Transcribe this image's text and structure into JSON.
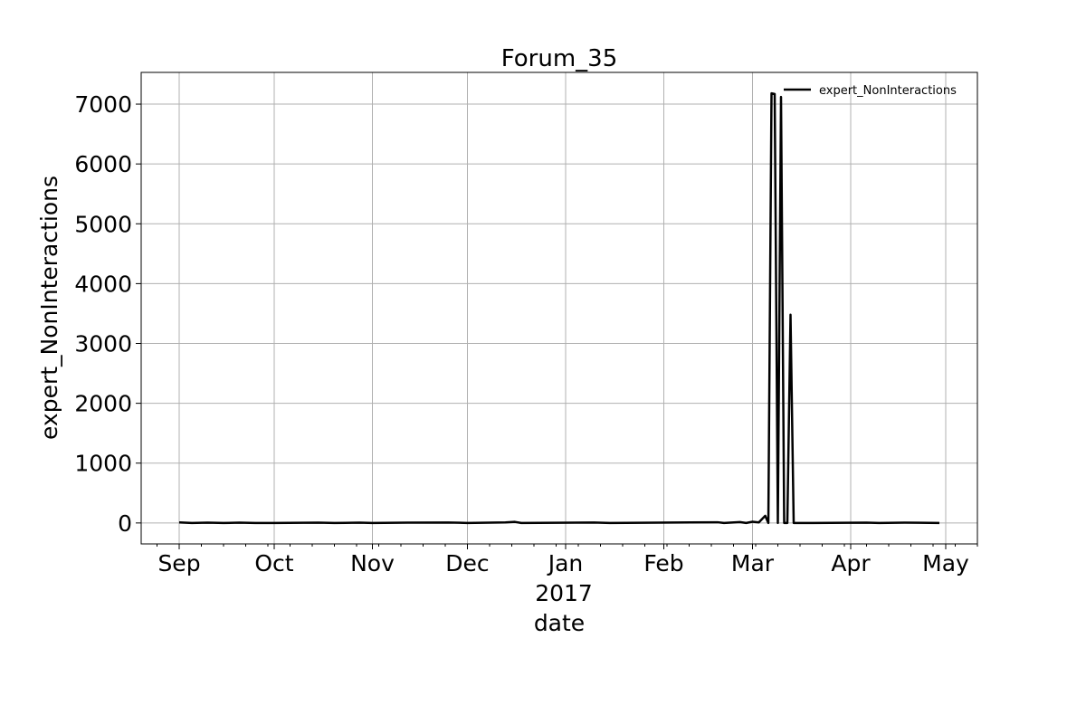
{
  "chart_data": {
    "type": "line",
    "title": "Forum_35",
    "xlabel": "date",
    "ylabel": "expert_NonInteractions",
    "year_label": "2017",
    "x_ticks": [
      {
        "date": "2016-09-01",
        "label": "Sep"
      },
      {
        "date": "2016-10-01",
        "label": "Oct"
      },
      {
        "date": "2016-11-01",
        "label": "Nov"
      },
      {
        "date": "2016-12-01",
        "label": "Dec"
      },
      {
        "date": "2017-01-01",
        "label": "Jan"
      },
      {
        "date": "2017-02-01",
        "label": "Feb"
      },
      {
        "date": "2017-03-01",
        "label": "Mar"
      },
      {
        "date": "2017-04-01",
        "label": "Apr"
      },
      {
        "date": "2017-05-01",
        "label": "May"
      }
    ],
    "xlim": [
      "2016-08-20",
      "2017-05-11"
    ],
    "y_ticks": [
      0,
      1000,
      2000,
      3000,
      4000,
      5000,
      6000,
      7000
    ],
    "ylim": [
      -350,
      7530
    ],
    "grid": true,
    "legend_position": "top-right",
    "series": [
      {
        "name": "expert_NonInteractions",
        "color": "#000000",
        "points": [
          [
            "2016-09-01",
            10
          ],
          [
            "2016-09-05",
            0
          ],
          [
            "2016-09-10",
            5
          ],
          [
            "2016-09-15",
            0
          ],
          [
            "2016-09-20",
            5
          ],
          [
            "2016-09-25",
            0
          ],
          [
            "2016-10-01",
            0
          ],
          [
            "2016-10-15",
            5
          ],
          [
            "2016-10-20",
            0
          ],
          [
            "2016-10-28",
            5
          ],
          [
            "2016-11-01",
            0
          ],
          [
            "2016-11-12",
            5
          ],
          [
            "2016-11-25",
            8
          ],
          [
            "2016-12-01",
            0
          ],
          [
            "2016-12-13",
            10
          ],
          [
            "2016-12-16",
            18
          ],
          [
            "2016-12-18",
            0
          ],
          [
            "2017-01-10",
            8
          ],
          [
            "2017-01-15",
            0
          ],
          [
            "2017-02-18",
            12
          ],
          [
            "2017-02-20",
            0
          ],
          [
            "2017-02-25",
            15
          ],
          [
            "2017-02-27",
            0
          ],
          [
            "2017-03-01",
            20
          ],
          [
            "2017-03-03",
            10
          ],
          [
            "2017-03-05",
            120
          ],
          [
            "2017-03-06",
            0
          ],
          [
            "2017-03-07",
            7180
          ],
          [
            "2017-03-08",
            7170
          ],
          [
            "2017-03-09",
            0
          ],
          [
            "2017-03-10",
            7120
          ],
          [
            "2017-03-11",
            0
          ],
          [
            "2017-03-12",
            0
          ],
          [
            "2017-03-13",
            3480
          ],
          [
            "2017-03-14",
            0
          ],
          [
            "2017-03-20",
            0
          ],
          [
            "2017-04-06",
            6
          ],
          [
            "2017-04-10",
            0
          ],
          [
            "2017-04-18",
            5
          ],
          [
            "2017-04-29",
            0
          ]
        ]
      }
    ]
  }
}
